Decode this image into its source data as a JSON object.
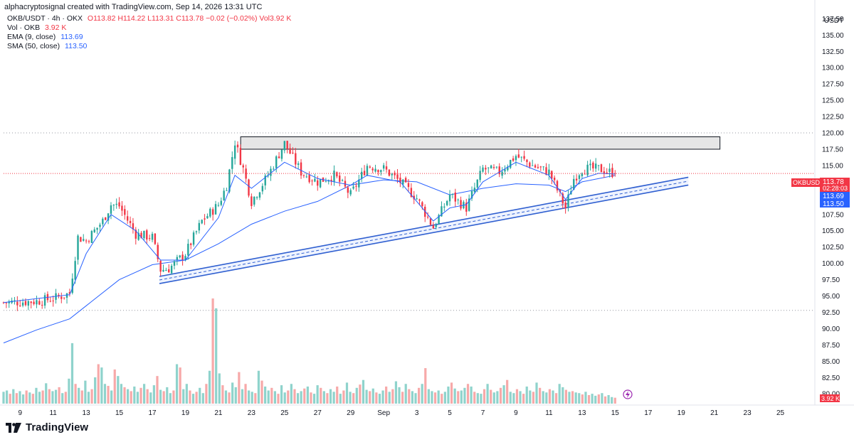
{
  "header": {
    "caption": "alphacryptosignal created with TradingView.com, Sep 14, 2026 13:31 UTC"
  },
  "legend": {
    "symbol": "OKB/USDT · 4h · OKX",
    "ohlc": "O113.82 H114.22 L113.31 C113.78 −0.02 (−0.02%) Vol3.92 K",
    "vol_label": "Vol · OKB",
    "vol_value": "3.92 K",
    "ema_label": "EMA (9, close)",
    "ema_value": "113.69",
    "sma_label": "SMA (50, close)",
    "sma_value": "113.50"
  },
  "price_axis": {
    "currency": "USDT",
    "ticks": [
      "137.50",
      "135.00",
      "132.50",
      "130.00",
      "127.50",
      "125.00",
      "122.50",
      "120.00",
      "117.50",
      "115.00",
      "112.50",
      "110.00",
      "107.50",
      "105.00",
      "102.50",
      "100.00",
      "97.50",
      "95.00",
      "92.50",
      "90.00",
      "87.50",
      "85.00",
      "82.50",
      "80.00"
    ],
    "symbol_tag": "OKBUSDT",
    "last_price": "113.78",
    "countdown": "02:28:03",
    "ema_tag": "113.69",
    "sma_tag": "113.50",
    "volume_tag": "3.92 K"
  },
  "time_axis": {
    "ticks": [
      "9",
      "11",
      "13",
      "15",
      "17",
      "19",
      "21",
      "23",
      "25",
      "27",
      "29",
      "Sep",
      "3",
      "5",
      "7",
      "9",
      "11",
      "13",
      "15",
      "17",
      "19",
      "21",
      "23",
      "25"
    ]
  },
  "colors": {
    "up": "#26a69a",
    "down": "#f23645",
    "up_volume": "#8fd3cc",
    "down_volume": "#f7a9a9",
    "ma_line": "#2962ff",
    "channel": "#2f5fd0",
    "zone_fill": "#e6e6e6",
    "zone_stroke": "#131722"
  },
  "branding": {
    "logo_text": "TradingView"
  },
  "chart_data": {
    "type": "candlestick",
    "symbol": "OKB/USDT",
    "interval": "4h",
    "ylim": [
      78.5,
      139.5
    ],
    "xlim": [
      "Aug 8",
      "Sep 26"
    ],
    "grid": false,
    "last": {
      "open": 113.82,
      "high": 114.22,
      "low": 113.31,
      "close": 113.78,
      "change": -0.02,
      "change_pct": -0.02,
      "volume": "3.92 K"
    },
    "close_path": [
      [
        "Aug 8",
        94.0
      ],
      [
        "Aug 10",
        94.2
      ],
      [
        "Aug 11",
        94.6
      ],
      [
        "Aug 12",
        95.4
      ],
      [
        "Aug 12.5",
        104.0
      ],
      [
        "Aug 13",
        103.5
      ],
      [
        "Aug 14",
        106.5
      ],
      [
        "Aug 14.5",
        109.0
      ],
      [
        "Aug 15",
        108.8
      ],
      [
        "Aug 16",
        104.5
      ],
      [
        "Aug 17",
        104.0
      ],
      [
        "Aug 17.5",
        99.0
      ],
      [
        "Aug 18",
        99.2
      ],
      [
        "Aug 19",
        101.5
      ],
      [
        "Aug 20",
        106.5
      ],
      [
        "Aug 21",
        109.0
      ],
      [
        "Aug 21.5",
        112.0
      ],
      [
        "Aug 22",
        118.6
      ],
      [
        "Aug 22.5",
        114.5
      ],
      [
        "Aug 23",
        109.5
      ],
      [
        "Aug 24",
        113.5
      ],
      [
        "Aug 25",
        118.4
      ],
      [
        "Aug 26",
        114.0
      ],
      [
        "Aug 27",
        112.5
      ],
      [
        "Aug 28",
        113.5
      ],
      [
        "Aug 29",
        110.5
      ],
      [
        "Aug 30",
        115.0
      ],
      [
        "Aug 31",
        114.5
      ],
      [
        "Sep 1",
        112.5
      ],
      [
        "Sep 2",
        110.0
      ],
      [
        "Sep 3",
        105.5
      ],
      [
        "Sep 4",
        110.5
      ],
      [
        "Sep 5",
        108.5
      ],
      [
        "Sep 6",
        114.5
      ],
      [
        "Sep 7",
        114.0
      ],
      [
        "Sep 8",
        116.5
      ],
      [
        "Sep 9",
        115.0
      ],
      [
        "Sep 10",
        114.0
      ],
      [
        "Sep 11",
        108.5
      ],
      [
        "Sep 11.5",
        113.0
      ],
      [
        "Sep 12",
        114.5
      ],
      [
        "Sep 13",
        114.5
      ],
      [
        "Sep 14",
        113.78
      ]
    ],
    "ema_path": [
      [
        "Aug 8",
        94.0
      ],
      [
        "Aug 12",
        95.2
      ],
      [
        "Aug 13",
        101.5
      ],
      [
        "Aug 14.5",
        107.5
      ],
      [
        "Aug 16",
        105.0
      ],
      [
        "Aug 17.5",
        100.5
      ],
      [
        "Aug 19",
        100.5
      ],
      [
        "Aug 21",
        107.0
      ],
      [
        "Aug 22",
        113.5
      ],
      [
        "Aug 23",
        111.5
      ],
      [
        "Aug 25",
        115.5
      ],
      [
        "Aug 27",
        113.0
      ],
      [
        "Aug 29",
        112.0
      ],
      [
        "Aug 30",
        113.5
      ],
      [
        "Sep 1",
        112.5
      ],
      [
        "Sep 3",
        106.5
      ],
      [
        "Sep 4",
        108.5
      ],
      [
        "Sep 5",
        109.0
      ],
      [
        "Sep 6",
        112.5
      ],
      [
        "Sep 8",
        115.5
      ],
      [
        "Sep 9",
        114.5
      ],
      [
        "Sep 10",
        113.5
      ],
      [
        "Sep 11",
        109.8
      ],
      [
        "Sep 12",
        113.0
      ],
      [
        "Sep 13",
        113.8
      ],
      [
        "Sep 14",
        113.69
      ]
    ],
    "sma_path": [
      [
        "Aug 8",
        87.8
      ],
      [
        "Aug 10",
        89.8
      ],
      [
        "Aug 12",
        91.5
      ],
      [
        "Aug 13",
        93.5
      ],
      [
        "Aug 15",
        97.5
      ],
      [
        "Aug 17",
        99.8
      ],
      [
        "Aug 19",
        100.5
      ],
      [
        "Aug 21",
        103.0
      ],
      [
        "Aug 23",
        106.0
      ],
      [
        "Aug 25",
        108.0
      ],
      [
        "Aug 27",
        109.5
      ],
      [
        "Aug 29",
        112.0
      ],
      [
        "Aug 31",
        112.8
      ],
      [
        "Sep 2",
        112.5
      ],
      [
        "Sep 4",
        110.5
      ],
      [
        "Sep 6",
        111.5
      ],
      [
        "Sep 8",
        112.2
      ],
      [
        "Sep 10",
        112.0
      ],
      [
        "Sep 11",
        111.0
      ],
      [
        "Sep 12",
        112.5
      ],
      [
        "Sep 14",
        113.5
      ]
    ],
    "annotations": [
      {
        "type": "resistance_zone",
        "from": "Aug 22",
        "to": "Sep 20",
        "low": 117.5,
        "high": 119.4
      },
      {
        "type": "ascending_channel",
        "from": "Aug 17",
        "to": "Sep 18",
        "start_low": 96.9,
        "start_high": 98.0,
        "end_low": 112.0,
        "end_high": 113.2
      }
    ],
    "reference_lines": [
      120.0,
      92.8
    ],
    "volume": {
      "unit": "K",
      "max": 16,
      "values": [
        1.8,
        2.0,
        1.5,
        2.2,
        1.6,
        1.9,
        1.4,
        2.0,
        1.7,
        1.5,
        2.4,
        1.8,
        2.0,
        3.1,
        2.2,
        1.9,
        2.1,
        2.5,
        1.6,
        1.8,
        3.8,
        9.2,
        3.0,
        2.4,
        2.0,
        3.5,
        1.8,
        2.2,
        4.0,
        6.0,
        5.5,
        3.0,
        2.7,
        2.0,
        5.2,
        4.2,
        3.0,
        2.5,
        2.2,
        1.9,
        2.6,
        1.8,
        2.4,
        3.0,
        2.2,
        1.7,
        2.8,
        4.2,
        2.1,
        1.9,
        2.5,
        1.6,
        2.0,
        6.0,
        5.5,
        2.2,
        3.0,
        2.0,
        1.5,
        1.8,
        2.4,
        1.6,
        3.0,
        5.0,
        16.0,
        14.5,
        4.6,
        2.8,
        2.0,
        1.7,
        3.2,
        2.5,
        4.8,
        2.2,
        3.0,
        2.0,
        1.8,
        1.6,
        5.0,
        3.5,
        2.6,
        2.0,
        2.4,
        1.9,
        1.5,
        2.8,
        1.7,
        2.0,
        3.0,
        2.2,
        1.6,
        1.9,
        2.3,
        2.6,
        1.7,
        1.5,
        2.8,
        2.4,
        1.9,
        1.6,
        2.2,
        1.8,
        2.6,
        1.5,
        2.0,
        3.2,
        1.8,
        1.6,
        2.4,
        2.9,
        3.6,
        2.1,
        1.9,
        2.3,
        1.7,
        1.5,
        2.0,
        2.6,
        1.8,
        2.2,
        3.4,
        2.5,
        1.8,
        3.0,
        2.2,
        1.9,
        1.6,
        2.4,
        3.0,
        5.4,
        2.2,
        1.9,
        1.7,
        2.0,
        1.5,
        1.8,
        2.6,
        3.2,
        2.3,
        1.9,
        2.0,
        2.4,
        3.0,
        2.6,
        1.8,
        1.6,
        1.5,
        2.2,
        3.0,
        2.1,
        1.7,
        1.9,
        2.4,
        2.8,
        3.6,
        1.8,
        1.6,
        2.2,
        1.9,
        1.5,
        2.6,
        2.0,
        1.8,
        3.2,
        2.4,
        1.9,
        1.7,
        2.2,
        2.0,
        1.6,
        3.0,
        2.5,
        2.1,
        1.8,
        1.9,
        1.7,
        1.6,
        1.4,
        1.8,
        1.3,
        1.5,
        1.2,
        1.4,
        1.6,
        1.1,
        1.3,
        1.0,
        0.9
      ]
    }
  }
}
